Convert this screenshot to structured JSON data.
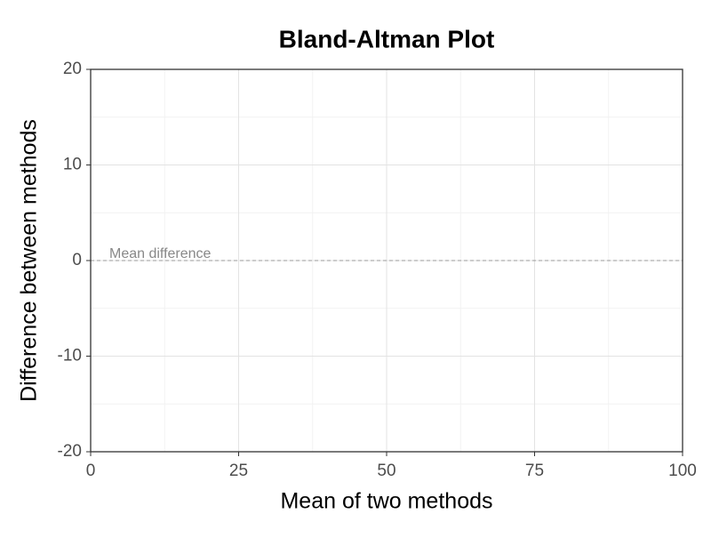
{
  "chart_data": {
    "type": "scatter",
    "title": "Bland-Altman Plot",
    "x_label": "Mean of two methods",
    "y_label": "Difference between methods",
    "xlim": [
      0,
      100
    ],
    "xticks": [
      0,
      25,
      50,
      75,
      100
    ],
    "ylim": [
      -20,
      20
    ],
    "yticks": [
      -20,
      -10,
      0,
      10,
      20
    ],
    "x_minor_grid": [
      12.5,
      37.5,
      62.5,
      87.5
    ],
    "y_minor_grid": [
      -15,
      -5,
      5,
      15
    ],
    "grid": true,
    "reference_line": {
      "y": 0,
      "label": "Mean difference",
      "color": "#999999"
    }
  }
}
